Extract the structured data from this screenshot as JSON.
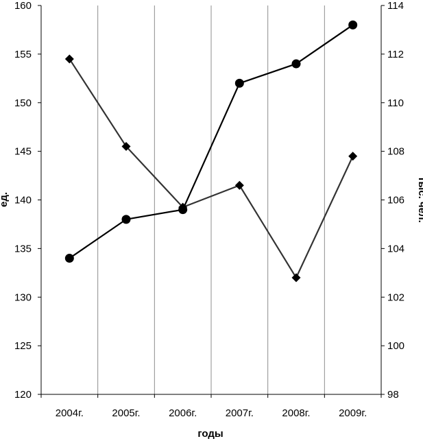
{
  "chart_data": {
    "type": "line",
    "categories": [
      "2004г.",
      "2005г.",
      "2006г.",
      "2007г.",
      "2008г.",
      "2009г."
    ],
    "xlabel": "годы",
    "y_left": {
      "label": "ед.",
      "lim": [
        120,
        160
      ],
      "ticks": [
        120,
        125,
        130,
        135,
        140,
        145,
        150,
        155,
        160
      ]
    },
    "y_right": {
      "label": "тыс. чел.",
      "lim": [
        98,
        114
      ],
      "ticks": [
        98,
        100,
        102,
        104,
        106,
        108,
        110,
        112,
        114
      ]
    },
    "series": [
      {
        "marker": "circle",
        "axis": "left",
        "color": "#000000",
        "values": [
          134,
          138,
          139,
          152,
          154,
          158
        ]
      },
      {
        "marker": "diamond",
        "axis": "right",
        "color": "#333333",
        "values": [
          111.8,
          108.2,
          105.7,
          106.6,
          102.8,
          107.8
        ]
      }
    ],
    "grid": {
      "vertical": true,
      "horizontal": false
    }
  }
}
